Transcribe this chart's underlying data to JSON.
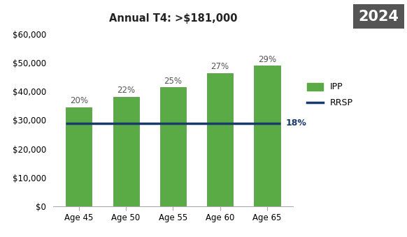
{
  "categories": [
    "Age 45",
    "Age 50",
    "Age 55",
    "Age 60",
    "Age 65"
  ],
  "ipp_values": [
    34500,
    38200,
    41500,
    46500,
    49000
  ],
  "ipp_pct_labels": [
    "20%",
    "22%",
    "25%",
    "27%",
    "29%"
  ],
  "rrsp_value": 29000,
  "rrsp_label": "18%",
  "bar_color": "#5aab46",
  "bar_edge_color": "#4a9038",
  "rrsp_line_color": "#1a3a6b",
  "title": "Annual T4: >$181,000",
  "year_label": "2024",
  "year_box_color": "#555555",
  "year_text_color": "#ffffff",
  "legend_ipp_color": "#5aab46",
  "legend_rrsp_color": "#1a3a6b",
  "ylim": [
    0,
    62000
  ],
  "yticks": [
    0,
    10000,
    20000,
    30000,
    40000,
    50000,
    60000
  ],
  "background_color": "#ffffff",
  "title_fontsize": 10.5,
  "axis_tick_fontsize": 8.5,
  "pct_fontsize": 8.5,
  "rrsp_pct_fontsize": 9,
  "legend_fontsize": 9
}
